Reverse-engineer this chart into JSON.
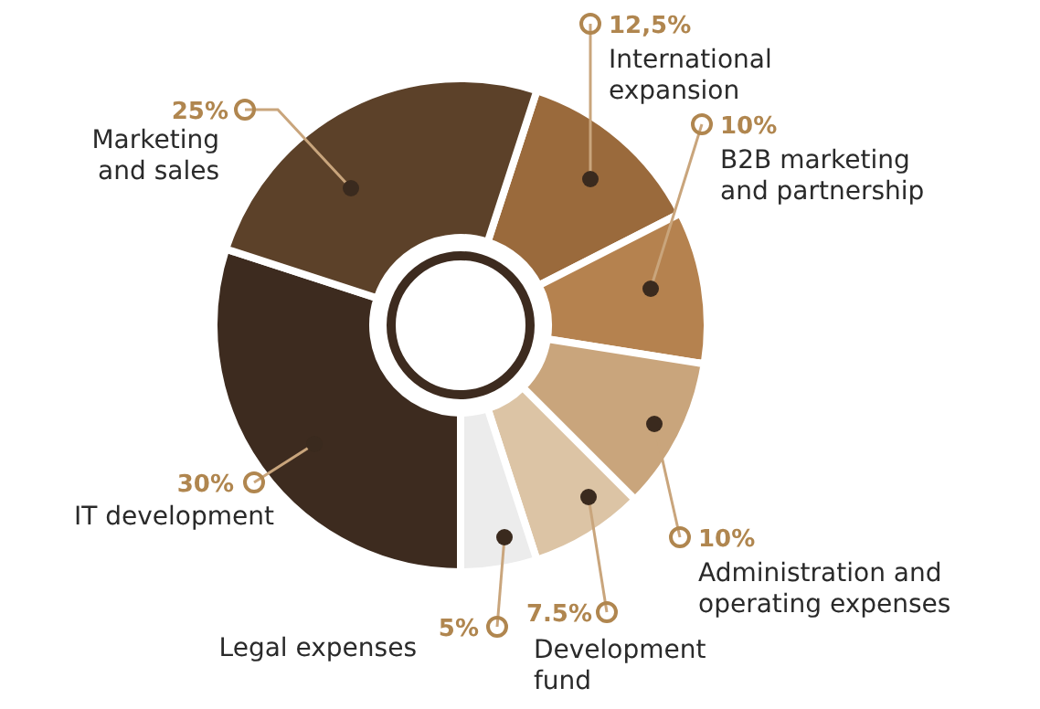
{
  "chart_data": {
    "type": "donut",
    "categories": [
      "International expansion",
      "B2B marketing and partnership",
      "Administration and operating expenses",
      "Development fund",
      "Legal expenses",
      "IT development",
      "Marketing and sales"
    ],
    "values": [
      12.5,
      10,
      10,
      7.5,
      5,
      30,
      25
    ],
    "value_labels": [
      "12,5%",
      "10%",
      "10%",
      "7.5%",
      "5%",
      "30%",
      "25%"
    ],
    "colors": [
      "#9a6a3c",
      "#b5824f",
      "#c9a57c",
      "#dcc4a5",
      "#ececec",
      "#3d2b1f",
      "#5c4129"
    ]
  }
}
